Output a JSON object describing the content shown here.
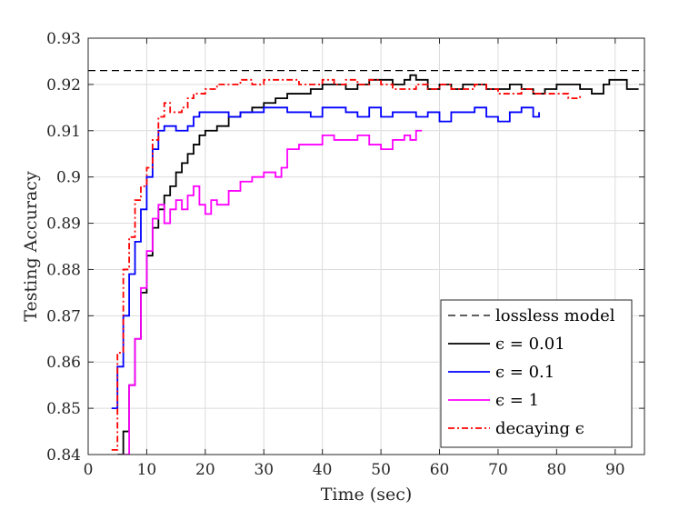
{
  "chart_data": {
    "type": "line",
    "title": "",
    "xlabel": "Time (sec)",
    "ylabel": "Testing Accuracy",
    "xlim": [
      0,
      95
    ],
    "ylim": [
      0.84,
      0.93
    ],
    "xticks": [
      0,
      10,
      20,
      30,
      40,
      50,
      60,
      70,
      80,
      90
    ],
    "yticks": [
      0.84,
      0.85,
      0.86,
      0.87,
      0.88,
      0.89,
      0.9,
      0.91,
      0.92,
      0.93
    ],
    "xtick_labels": [
      "0",
      "10",
      "20",
      "30",
      "40",
      "50",
      "60",
      "70",
      "80",
      "90"
    ],
    "ytick_labels": [
      "0.84",
      "0.85",
      "0.86",
      "0.87",
      "0.88",
      "0.89",
      "0.9",
      "0.91",
      "0.92",
      "0.93"
    ],
    "grid": true,
    "legend_position": "bottom-right",
    "series": [
      {
        "name": "lossless model",
        "color": "#000000",
        "dash": "dashed",
        "x": [
          0,
          95
        ],
        "y": [
          0.923,
          0.923
        ]
      },
      {
        "name": "ϵ = 0.01",
        "color": "#000000",
        "dash": "solid",
        "x": [
          5,
          6,
          7,
          8,
          9,
          10,
          11,
          12,
          13,
          14,
          15,
          16,
          17,
          18,
          19,
          20,
          22,
          24,
          26,
          28,
          30,
          32,
          34,
          36,
          38,
          40,
          42,
          44,
          46,
          48,
          50,
          52,
          54,
          55,
          56,
          57,
          58,
          60,
          62,
          64,
          66,
          68,
          70,
          72,
          74,
          76,
          78,
          80,
          82,
          84,
          86,
          88,
          89,
          90,
          92,
          94
        ],
        "y": [
          0.84,
          0.845,
          0.855,
          0.865,
          0.875,
          0.883,
          0.889,
          0.893,
          0.896,
          0.898,
          0.901,
          0.903,
          0.905,
          0.907,
          0.909,
          0.91,
          0.911,
          0.913,
          0.914,
          0.915,
          0.916,
          0.917,
          0.918,
          0.918,
          0.919,
          0.92,
          0.92,
          0.919,
          0.92,
          0.921,
          0.921,
          0.92,
          0.921,
          0.922,
          0.921,
          0.921,
          0.919,
          0.92,
          0.919,
          0.92,
          0.92,
          0.919,
          0.919,
          0.92,
          0.919,
          0.918,
          0.919,
          0.92,
          0.92,
          0.919,
          0.918,
          0.92,
          0.921,
          0.921,
          0.919,
          0.919
        ]
      },
      {
        "name": "ϵ = 0.1",
        "color": "#0000ff",
        "dash": "solid",
        "x": [
          4,
          5,
          6,
          7,
          8,
          9,
          10,
          11,
          12,
          13,
          14,
          15,
          16,
          17,
          18,
          19,
          20,
          22,
          24,
          26,
          28,
          30,
          32,
          34,
          36,
          38,
          40,
          42,
          44,
          46,
          48,
          50,
          52,
          54,
          56,
          58,
          60,
          62,
          64,
          66,
          68,
          70,
          72,
          74,
          76,
          77
        ],
        "y": [
          0.85,
          0.859,
          0.87,
          0.879,
          0.886,
          0.893,
          0.9,
          0.906,
          0.91,
          0.911,
          0.911,
          0.91,
          0.91,
          0.911,
          0.913,
          0.914,
          0.914,
          0.914,
          0.913,
          0.914,
          0.914,
          0.915,
          0.915,
          0.914,
          0.914,
          0.913,
          0.915,
          0.915,
          0.914,
          0.913,
          0.915,
          0.913,
          0.914,
          0.914,
          0.913,
          0.914,
          0.912,
          0.914,
          0.914,
          0.915,
          0.913,
          0.912,
          0.914,
          0.915,
          0.913,
          0.914
        ]
      },
      {
        "name": "ϵ = 1",
        "color": "#ff00ff",
        "dash": "solid",
        "x": [
          6,
          7,
          8,
          9,
          10,
          11,
          12,
          13,
          14,
          15,
          16,
          17,
          18,
          19,
          20,
          21,
          22,
          24,
          26,
          28,
          30,
          32,
          33,
          34,
          36,
          38,
          40,
          42,
          44,
          46,
          48,
          50,
          52,
          54,
          55,
          56,
          57
        ],
        "y": [
          0.84,
          0.855,
          0.865,
          0.876,
          0.884,
          0.891,
          0.894,
          0.89,
          0.893,
          0.895,
          0.893,
          0.896,
          0.898,
          0.894,
          0.892,
          0.895,
          0.894,
          0.897,
          0.899,
          0.9,
          0.901,
          0.9,
          0.902,
          0.906,
          0.907,
          0.907,
          0.909,
          0.908,
          0.908,
          0.909,
          0.907,
          0.906,
          0.908,
          0.909,
          0.908,
          0.91,
          0.91
        ]
      },
      {
        "name": "decaying ϵ",
        "color": "#ff0000",
        "dash": "dashdot",
        "x": [
          4,
          5,
          6,
          7,
          8,
          9,
          10,
          11,
          12,
          13,
          14,
          15,
          16,
          17,
          18,
          19,
          20,
          22,
          24,
          26,
          28,
          30,
          32,
          34,
          36,
          38,
          40,
          42,
          44,
          46,
          48,
          50,
          52,
          54,
          56,
          58,
          60,
          62,
          64,
          66,
          68,
          70,
          72,
          74,
          76,
          78,
          80,
          82,
          84
        ],
        "y": [
          0.841,
          0.862,
          0.88,
          0.887,
          0.895,
          0.898,
          0.902,
          0.908,
          0.913,
          0.916,
          0.914,
          0.914,
          0.915,
          0.917,
          0.918,
          0.918,
          0.919,
          0.92,
          0.92,
          0.921,
          0.92,
          0.921,
          0.921,
          0.921,
          0.92,
          0.92,
          0.921,
          0.92,
          0.921,
          0.92,
          0.921,
          0.92,
          0.919,
          0.919,
          0.92,
          0.919,
          0.92,
          0.919,
          0.919,
          0.92,
          0.919,
          0.918,
          0.918,
          0.919,
          0.918,
          0.918,
          0.918,
          0.917,
          0.918
        ]
      }
    ]
  }
}
